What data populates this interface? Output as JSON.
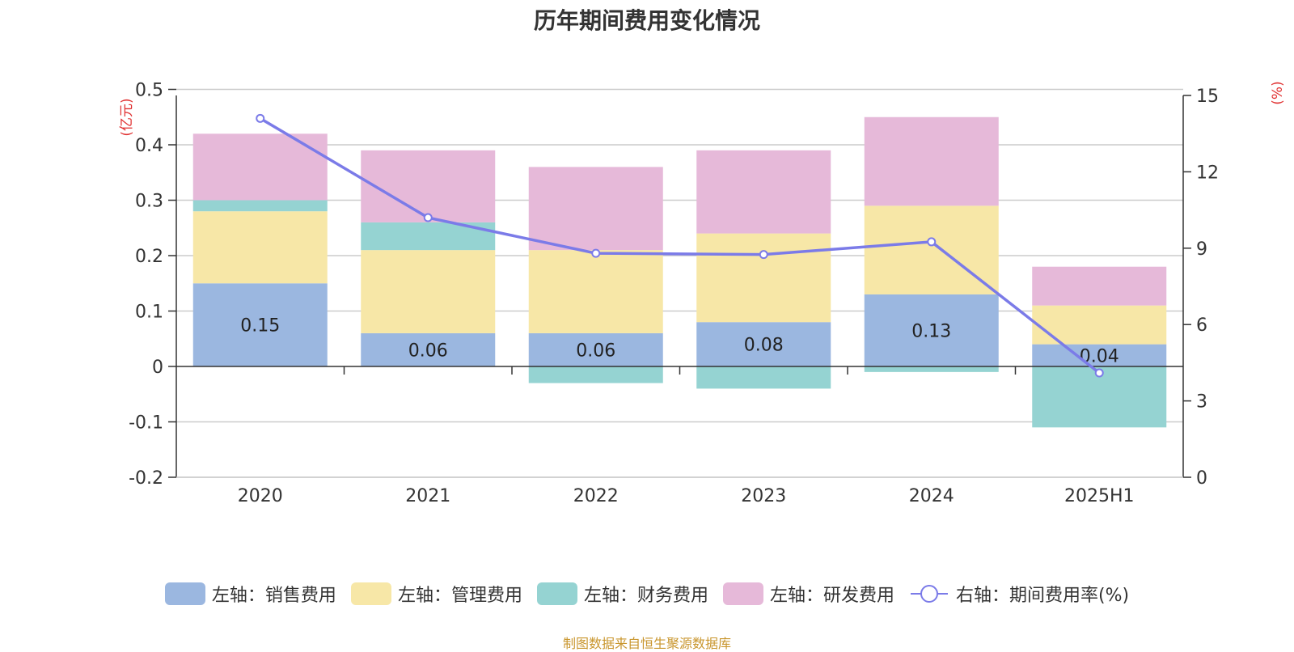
{
  "chart_data": {
    "type": "bar",
    "title": "历年期间费用变化情况",
    "categories": [
      "2020",
      "2021",
      "2022",
      "2023",
      "2024",
      "2025H1"
    ],
    "y_left": {
      "unit_label": "(亿元)",
      "ylim": [
        -0.2,
        0.5
      ],
      "ticks": [
        0.5,
        0.4,
        0.3,
        0.2,
        0.1,
        0,
        -0.1,
        -0.2
      ],
      "tick_labels": [
        "0.5",
        "0.4",
        "0.3",
        "0.2",
        "0.1",
        "0",
        "-0.1",
        "-0.2"
      ]
    },
    "y_right": {
      "unit_label": "(%)",
      "ylim": [
        0,
        15
      ],
      "ticks": [
        15,
        12,
        9,
        6,
        3,
        0
      ],
      "tick_labels": [
        "15",
        "12",
        "9",
        "6",
        "3",
        "0"
      ]
    },
    "series": [
      {
        "name": "左轴：销售费用",
        "type": "bar",
        "axis": "left",
        "color": "#9bb7e0",
        "values": [
          0.15,
          0.06,
          0.06,
          0.08,
          0.13,
          0.04
        ],
        "labels": [
          "0.15",
          "0.06",
          "0.06",
          "0.08",
          "0.13",
          "0.04"
        ]
      },
      {
        "name": "左轴：管理费用",
        "type": "bar",
        "axis": "left",
        "color": "#f7e7a7",
        "values": [
          0.13,
          0.15,
          0.15,
          0.16,
          0.16,
          0.07
        ]
      },
      {
        "name": "左轴：财务费用",
        "type": "bar",
        "axis": "left",
        "color": "#95d3d2",
        "values": [
          0.02,
          0.05,
          -0.03,
          -0.04,
          -0.01,
          -0.11
        ]
      },
      {
        "name": "左轴：研发费用",
        "type": "bar",
        "axis": "left",
        "color": "#e6b9d9",
        "values": [
          0.12,
          0.13,
          0.15,
          0.15,
          0.16,
          0.07
        ]
      },
      {
        "name": "右轴：期间费用率(%)",
        "type": "line",
        "axis": "right",
        "color": "#7b7be8",
        "values": [
          14.1,
          10.2,
          8.8,
          8.75,
          9.25,
          4.1
        ]
      }
    ],
    "grid": true,
    "legend_position": "bottom"
  },
  "source_note": "制图数据来自恒生聚源数据库"
}
